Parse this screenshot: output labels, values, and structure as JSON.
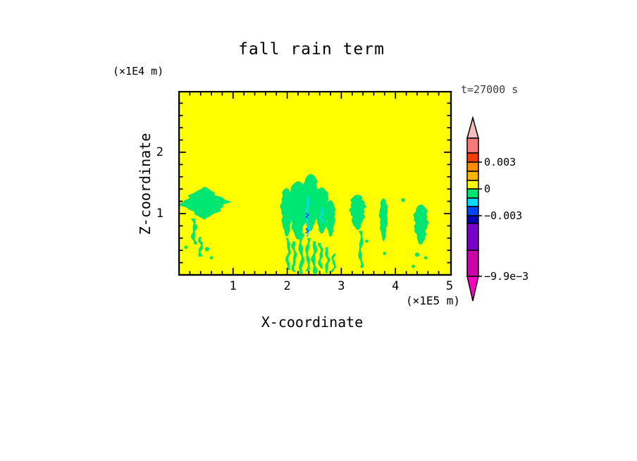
{
  "title": "fall rain term",
  "annotations": {
    "time_label": "t=27000 s"
  },
  "axes": {
    "x": {
      "label": "X-coordinate",
      "unit": "(×1E5 m)",
      "tick_labels": [
        "1",
        "2",
        "3",
        "4",
        "5"
      ],
      "tick_values": [
        1,
        2,
        3,
        4,
        5
      ],
      "minor_step": 0.2,
      "range": [
        0,
        5.03
      ]
    },
    "z": {
      "label": "Z-coordinate",
      "unit": "(×1E4 m)",
      "tick_labels": [
        "1",
        "2"
      ],
      "tick_values": [
        1,
        2
      ],
      "minor_step": 0.2,
      "range": [
        0,
        2.99
      ]
    }
  },
  "palette": {
    "page_background": "#FFFFFF",
    "axis_color": "#000000",
    "field_background": "#FFFF00",
    "green": "#00E673",
    "cyan": "#00DCFF",
    "blue": "#0046FA"
  },
  "colorbar": {
    "arrow_top_color": "#F9BCBC",
    "arrow_bottom_color": "#FF00BE",
    "segment_colors_top_to_bottom": [
      "#F87878",
      "#FA3C00",
      "#FA8C00",
      "#FFB400",
      "#FFFF00",
      "#00E673",
      "#00DCFF",
      "#0046FA",
      "#0000B4",
      "#7800C8",
      "#CC00AA"
    ],
    "labels": [
      {
        "text": "0.003",
        "value": 0.003
      },
      {
        "text": "0",
        "value": 0
      },
      {
        "text": "−0.003",
        "value": -0.003
      },
      {
        "text": "−9.9e−3",
        "value": -0.0099
      }
    ]
  },
  "chart_data": {
    "type": "heatmap",
    "title": "fall rain term",
    "xlabel": "X-coordinate (×1E5 m)",
    "ylabel": "Z-coordinate (×1E4 m)",
    "time": "t=27000 s",
    "x_range": [
      0,
      5.03
    ],
    "z_range": [
      0,
      2.99
    ],
    "contour_interval": 0.001,
    "background_field": {
      "color_key": "field_background",
      "level": "0 to 0.001"
    },
    "legend_levels": [
      {
        "color_key": "green",
        "level": "-0.001 to 0"
      },
      {
        "color_key": "cyan",
        "level": "-0.002 to -0.001"
      },
      {
        "color_key": "blue",
        "level": "-0.003 to -0.002"
      }
    ],
    "features": [
      {
        "kind": "blob",
        "shape": "diamond",
        "color_key": "green",
        "cx": 0.47,
        "cz": 1.17,
        "rx": 0.44,
        "rz": 0.27
      },
      {
        "kind": "filament",
        "color_key": "green",
        "x": 0.28,
        "z1": 0.5,
        "z2": 0.92,
        "w": 0.06
      },
      {
        "kind": "filament",
        "color_key": "green",
        "x": 0.4,
        "z1": 0.3,
        "z2": 0.62,
        "w": 0.05
      },
      {
        "kind": "speck",
        "color_key": "green",
        "cx": 0.13,
        "cz": 0.45,
        "r": 0.03
      },
      {
        "kind": "speck",
        "color_key": "green",
        "cx": 0.52,
        "cz": 0.42,
        "r": 0.04
      },
      {
        "kind": "speck",
        "color_key": "green",
        "cx": 0.6,
        "cz": 0.28,
        "r": 0.03
      },
      {
        "kind": "blob",
        "shape": "teardrop",
        "color_key": "green",
        "cx": 1.99,
        "cz": 1.02,
        "rx": 0.1,
        "rz": 0.4
      },
      {
        "kind": "blob",
        "shape": "teardrop",
        "color_key": "green",
        "cx": 2.2,
        "cz": 1.05,
        "rx": 0.15,
        "rz": 0.48
      },
      {
        "kind": "blob",
        "shape": "teardrop",
        "color_key": "green",
        "cx": 2.43,
        "cz": 1.18,
        "rx": 0.14,
        "rz": 0.47
      },
      {
        "kind": "blob",
        "shape": "teardrop",
        "color_key": "green",
        "cx": 2.64,
        "cz": 1.05,
        "rx": 0.12,
        "rz": 0.38
      },
      {
        "kind": "blob",
        "shape": "teardrop",
        "color_key": "green",
        "cx": 2.8,
        "cz": 0.92,
        "rx": 0.08,
        "rz": 0.3
      },
      {
        "kind": "filament",
        "color_key": "green",
        "x": 2.02,
        "z1": 0.08,
        "z2": 0.6,
        "w": 0.05
      },
      {
        "kind": "filament",
        "color_key": "green",
        "x": 2.13,
        "z1": 0.05,
        "z2": 0.55,
        "w": 0.05
      },
      {
        "kind": "filament",
        "color_key": "green",
        "x": 2.26,
        "z1": 0.02,
        "z2": 0.68,
        "w": 0.06
      },
      {
        "kind": "filament",
        "color_key": "green",
        "x": 2.38,
        "z1": 0.06,
        "z2": 0.6,
        "w": 0.05
      },
      {
        "kind": "filament",
        "color_key": "green",
        "x": 2.5,
        "z1": 0.02,
        "z2": 0.55,
        "w": 0.06
      },
      {
        "kind": "filament",
        "color_key": "green",
        "x": 2.62,
        "z1": 0.1,
        "z2": 0.52,
        "w": 0.05
      },
      {
        "kind": "filament",
        "color_key": "green",
        "x": 2.74,
        "z1": 0.03,
        "z2": 0.45,
        "w": 0.05
      },
      {
        "kind": "filament",
        "color_key": "green",
        "x": 2.86,
        "z1": 0.05,
        "z2": 0.35,
        "w": 0.04
      },
      {
        "kind": "blob",
        "shape": "teardrop",
        "color_key": "green",
        "cx": 3.3,
        "cz": 1.02,
        "rx": 0.13,
        "rz": 0.29
      },
      {
        "kind": "filament",
        "color_key": "green",
        "x": 3.36,
        "z1": 0.12,
        "z2": 0.72,
        "w": 0.05
      },
      {
        "kind": "speck",
        "color_key": "green",
        "cx": 3.47,
        "cz": 0.55,
        "r": 0.03
      },
      {
        "kind": "blob",
        "shape": "teardrop",
        "color_key": "green",
        "cx": 3.78,
        "cz": 0.9,
        "rx": 0.07,
        "rz": 0.35
      },
      {
        "kind": "speck",
        "color_key": "green",
        "cx": 3.8,
        "cz": 0.35,
        "r": 0.03
      },
      {
        "kind": "speck",
        "color_key": "green",
        "cx": 4.14,
        "cz": 1.22,
        "r": 0.035
      },
      {
        "kind": "blob",
        "shape": "teardrop",
        "color_key": "green",
        "cx": 4.47,
        "cz": 0.82,
        "rx": 0.12,
        "rz": 0.33
      },
      {
        "kind": "speck",
        "color_key": "green",
        "cx": 4.4,
        "cz": 0.33,
        "r": 0.04
      },
      {
        "kind": "speck",
        "color_key": "green",
        "cx": 4.56,
        "cz": 0.28,
        "r": 0.03
      },
      {
        "kind": "speck",
        "color_key": "green",
        "cx": 4.33,
        "cz": 0.14,
        "r": 0.03
      },
      {
        "kind": "filament",
        "color_key": "cyan",
        "x": 2.37,
        "z1": 0.62,
        "z2": 1.28,
        "w": 0.035
      },
      {
        "kind": "filament",
        "color_key": "cyan",
        "x": 2.64,
        "z1": 0.85,
        "z2": 1.1,
        "w": 0.03
      },
      {
        "kind": "filament",
        "color_key": "blue",
        "x": 2.37,
        "z1": 0.93,
        "z2": 1.01,
        "w": 0.03
      },
      {
        "kind": "filament",
        "color_key": "blue",
        "x": 2.37,
        "z1": 0.68,
        "z2": 0.76,
        "w": 0.03
      }
    ]
  }
}
